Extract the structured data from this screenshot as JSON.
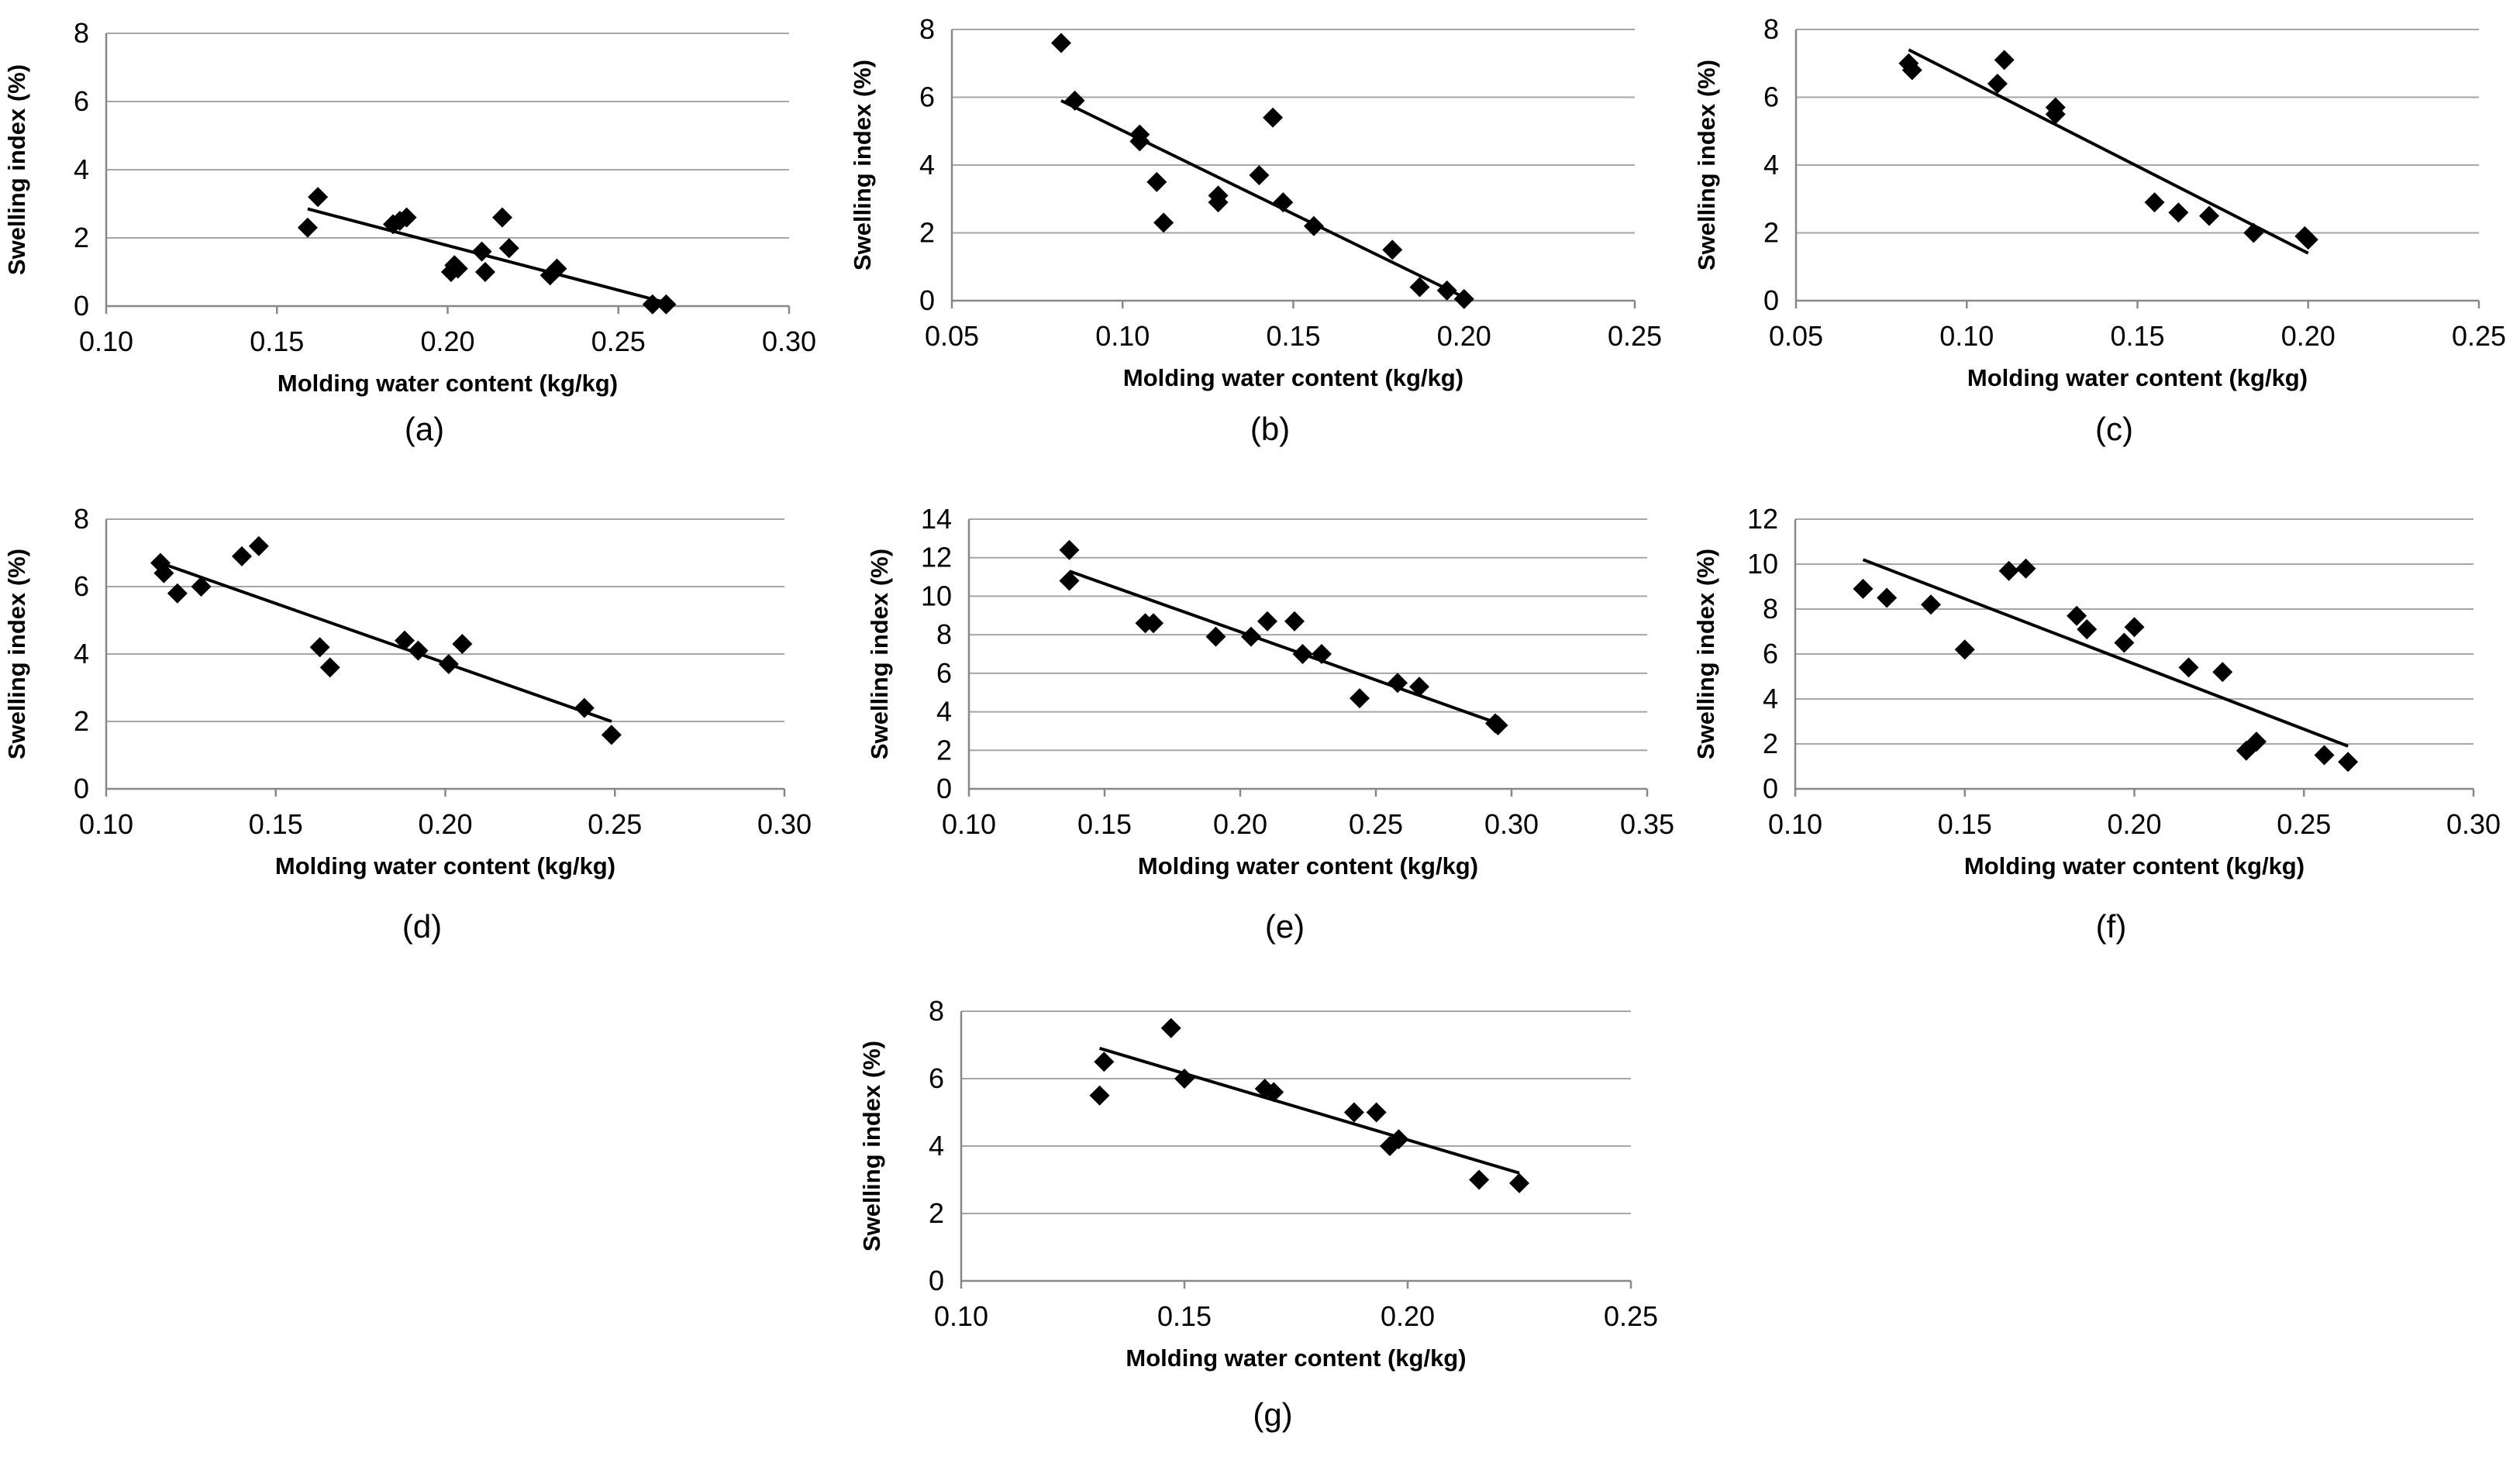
{
  "chart_data": [
    {
      "type": "scatter",
      "panel_label": "(a)",
      "xlabel": "Molding water content (kg/kg)",
      "ylabel": "Swelling index (%)",
      "xlim": [
        0.1,
        0.3
      ],
      "ylim": [
        0,
        8
      ],
      "grid": true,
      "xticks": [
        "0.10",
        "0.15",
        "0.20",
        "0.25",
        "0.30"
      ],
      "yticks": [
        "0",
        "2",
        "4",
        "6",
        "8"
      ],
      "points": [
        [
          0.159,
          2.3
        ],
        [
          0.162,
          3.2
        ],
        [
          0.184,
          2.4
        ],
        [
          0.186,
          2.5
        ],
        [
          0.188,
          2.6
        ],
        [
          0.201,
          1.0
        ],
        [
          0.202,
          1.2
        ],
        [
          0.203,
          1.1
        ],
        [
          0.21,
          1.6
        ],
        [
          0.211,
          1.0
        ],
        [
          0.216,
          2.6
        ],
        [
          0.218,
          1.7
        ],
        [
          0.23,
          0.9
        ],
        [
          0.232,
          1.1
        ],
        [
          0.26,
          0.05
        ],
        [
          0.264,
          0.05
        ]
      ],
      "trendline": [
        [
          0.159,
          2.85
        ],
        [
          0.264,
          0.1
        ]
      ]
    },
    {
      "type": "scatter",
      "panel_label": "(b)",
      "xlabel": "Molding water content (kg/kg)",
      "ylabel": "Swelling index (%)",
      "xlim": [
        0.05,
        0.25
      ],
      "ylim": [
        0,
        8
      ],
      "grid": true,
      "xticks": [
        "0.05",
        "0.10",
        "0.15",
        "0.20",
        "0.25"
      ],
      "yticks": [
        "0",
        "2",
        "4",
        "6",
        "8"
      ],
      "points": [
        [
          0.082,
          7.6
        ],
        [
          0.086,
          5.9
        ],
        [
          0.105,
          4.9
        ],
        [
          0.105,
          4.7
        ],
        [
          0.11,
          3.5
        ],
        [
          0.112,
          2.3
        ],
        [
          0.128,
          3.1
        ],
        [
          0.128,
          2.9
        ],
        [
          0.14,
          3.7
        ],
        [
          0.144,
          5.4
        ],
        [
          0.147,
          2.9
        ],
        [
          0.156,
          2.2
        ],
        [
          0.179,
          1.5
        ],
        [
          0.187,
          0.4
        ],
        [
          0.195,
          0.3
        ],
        [
          0.2,
          0.05
        ]
      ],
      "trendline": [
        [
          0.082,
          5.9
        ],
        [
          0.2,
          0.1
        ]
      ]
    },
    {
      "type": "scatter",
      "panel_label": "(c)",
      "xlabel": "Molding water content (kg/kg)",
      "ylabel": "Swelling index (%)",
      "xlim": [
        0.05,
        0.25
      ],
      "ylim": [
        0,
        8
      ],
      "grid": true,
      "xticks": [
        "0.05",
        "0.10",
        "0.15",
        "0.20",
        "0.25"
      ],
      "yticks": [
        "0",
        "2",
        "4",
        "6",
        "8"
      ],
      "points": [
        [
          0.083,
          7.0
        ],
        [
          0.084,
          6.8
        ],
        [
          0.109,
          6.4
        ],
        [
          0.111,
          7.1
        ],
        [
          0.126,
          5.7
        ],
        [
          0.126,
          5.5
        ],
        [
          0.155,
          2.9
        ],
        [
          0.162,
          2.6
        ],
        [
          0.171,
          2.5
        ],
        [
          0.184,
          2.0
        ],
        [
          0.199,
          1.9
        ],
        [
          0.2,
          1.8
        ]
      ],
      "trendline": [
        [
          0.083,
          7.4
        ],
        [
          0.2,
          1.4
        ]
      ]
    },
    {
      "type": "scatter",
      "panel_label": "(d)",
      "xlabel": "Molding water content (kg/kg)",
      "ylabel": "Swelling index (%)",
      "xlim": [
        0.1,
        0.3
      ],
      "ylim": [
        0,
        8
      ],
      "grid": true,
      "xticks": [
        "0.10",
        "0.15",
        "0.20",
        "0.25",
        "0.30"
      ],
      "yticks": [
        "0",
        "2",
        "4",
        "6",
        "8"
      ],
      "points": [
        [
          0.116,
          6.7
        ],
        [
          0.117,
          6.4
        ],
        [
          0.121,
          5.8
        ],
        [
          0.128,
          6.0
        ],
        [
          0.14,
          6.9
        ],
        [
          0.145,
          7.2
        ],
        [
          0.163,
          4.2
        ],
        [
          0.166,
          3.6
        ],
        [
          0.188,
          4.4
        ],
        [
          0.192,
          4.1
        ],
        [
          0.201,
          3.7
        ],
        [
          0.205,
          4.3
        ],
        [
          0.241,
          2.4
        ],
        [
          0.249,
          1.6
        ]
      ],
      "trendline": [
        [
          0.116,
          6.7
        ],
        [
          0.249,
          2.0
        ]
      ]
    },
    {
      "type": "scatter",
      "panel_label": "(e)",
      "xlabel": "Molding water content (kg/kg)",
      "ylabel": "Swelling index (%)",
      "xlim": [
        0.1,
        0.35
      ],
      "ylim": [
        0,
        14
      ],
      "grid": true,
      "xticks": [
        "0.10",
        "0.15",
        "0.20",
        "0.25",
        "0.30",
        "0.35"
      ],
      "yticks": [
        "0",
        "2",
        "4",
        "6",
        "8",
        "10",
        "12",
        "14"
      ],
      "points": [
        [
          0.137,
          12.4
        ],
        [
          0.137,
          10.8
        ],
        [
          0.165,
          8.6
        ],
        [
          0.168,
          8.6
        ],
        [
          0.191,
          7.9
        ],
        [
          0.204,
          7.9
        ],
        [
          0.21,
          8.7
        ],
        [
          0.22,
          8.7
        ],
        [
          0.223,
          7.0
        ],
        [
          0.23,
          7.0
        ],
        [
          0.244,
          4.7
        ],
        [
          0.258,
          5.5
        ],
        [
          0.266,
          5.3
        ],
        [
          0.294,
          3.4
        ],
        [
          0.295,
          3.3
        ]
      ],
      "trendline": [
        [
          0.137,
          11.3
        ],
        [
          0.295,
          3.4
        ]
      ]
    },
    {
      "type": "scatter",
      "panel_label": "(f)",
      "xlabel": "Molding water content (kg/kg)",
      "ylabel": "Swelling index (%)",
      "xlim": [
        0.1,
        0.3
      ],
      "ylim": [
        0,
        12
      ],
      "grid": true,
      "xticks": [
        "0.10",
        "0.15",
        "0.20",
        "0.25",
        "0.30"
      ],
      "yticks": [
        "0",
        "2",
        "4",
        "6",
        "8",
        "10",
        "12"
      ],
      "points": [
        [
          0.12,
          8.9
        ],
        [
          0.127,
          8.5
        ],
        [
          0.14,
          8.2
        ],
        [
          0.15,
          6.2
        ],
        [
          0.163,
          9.7
        ],
        [
          0.168,
          9.8
        ],
        [
          0.183,
          7.7
        ],
        [
          0.186,
          7.1
        ],
        [
          0.197,
          6.5
        ],
        [
          0.2,
          7.2
        ],
        [
          0.216,
          5.4
        ],
        [
          0.226,
          5.2
        ],
        [
          0.233,
          1.7
        ],
        [
          0.236,
          2.1
        ],
        [
          0.256,
          1.5
        ],
        [
          0.263,
          1.2
        ]
      ],
      "trendline": [
        [
          0.12,
          10.2
        ],
        [
          0.263,
          1.9
        ]
      ]
    },
    {
      "type": "scatter",
      "panel_label": "(g)",
      "xlabel": "Molding water content (kg/kg)",
      "ylabel": "Swelling index (%)",
      "xlim": [
        0.1,
        0.25
      ],
      "ylim": [
        0,
        8
      ],
      "grid": true,
      "xticks": [
        "0.10",
        "0.15",
        "0.20",
        "0.25"
      ],
      "yticks": [
        "0",
        "2",
        "4",
        "6",
        "8"
      ],
      "points": [
        [
          0.131,
          5.5
        ],
        [
          0.132,
          6.5
        ],
        [
          0.147,
          7.5
        ],
        [
          0.15,
          6.0
        ],
        [
          0.168,
          5.7
        ],
        [
          0.17,
          5.6
        ],
        [
          0.188,
          5.0
        ],
        [
          0.193,
          5.0
        ],
        [
          0.196,
          4.0
        ],
        [
          0.198,
          4.2
        ],
        [
          0.216,
          3.0
        ],
        [
          0.225,
          2.9
        ]
      ],
      "trendline": [
        [
          0.131,
          6.9
        ],
        [
          0.225,
          3.2
        ]
      ]
    }
  ]
}
